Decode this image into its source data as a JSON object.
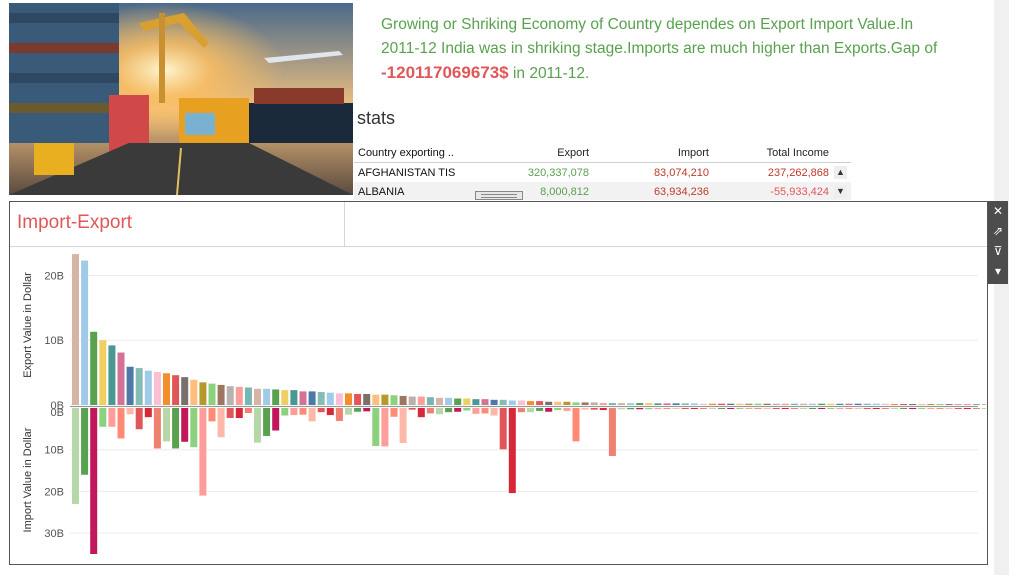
{
  "story": {
    "text": "Growing or Shriking Economy of Country dependes on Export Import Value.In 2011-12 India was in shriking stage.Imports are much higher than Exports.Gap of ",
    "gap_value": "-120117069673$",
    "suffix": " in 2011-12."
  },
  "stats": {
    "title": "stats",
    "headers": [
      "Country exporting ..",
      "Export",
      "Import",
      "Total Income"
    ],
    "rows": [
      {
        "country": "AFGHANISTAN TIS",
        "export": "320,337,078",
        "import": "83,074,210",
        "total": "237,262,868"
      },
      {
        "country": "ALBANIA",
        "export": "8,000,812",
        "import": "63,934,236",
        "total": "-55,933,424"
      }
    ],
    "scroll_up": "▲",
    "scroll_down": "▼"
  },
  "panel": {
    "title": "Import-Export",
    "export_axis_label": "Export Value in Dollar",
    "import_axis_label": "Import Value in Dollar",
    "tools": {
      "close": "✕",
      "popout": "⇗",
      "filter": "⊽",
      "menu": "▾"
    }
  },
  "chart_data": [
    {
      "type": "bar",
      "ylabel": "Export Value in Dollar",
      "ylim": [
        0,
        23000000000
      ],
      "ticks": [
        {
          "value": 0,
          "label": "0B"
        },
        {
          "value": 10000000000,
          "label": "10B"
        },
        {
          "value": 20000000000,
          "label": "20B"
        }
      ],
      "values": [
        23300000000,
        22300000000,
        11300000000,
        10000000000,
        9200000000,
        8100000000,
        5900000000,
        5700000000,
        5300000000,
        5100000000,
        4900000000,
        4600000000,
        4300000000,
        3900000000,
        3500000000,
        3300000000,
        3100000000,
        2900000000,
        2800000000,
        2700000000,
        2500000000,
        2500000000,
        2400000000,
        2300000000,
        2300000000,
        2100000000,
        2100000000,
        2000000000,
        1900000000,
        1800000000,
        1800000000,
        1700000000,
        1700000000,
        1600000000,
        1600000000,
        1500000000,
        1400000000,
        1300000000,
        1300000000,
        1200000000,
        1100000000,
        1100000000,
        1000000000,
        1000000000,
        900000000,
        900000000,
        800000000,
        800000000,
        700000000,
        700000000,
        600000000,
        600000000,
        500000000,
        500000000,
        500000000,
        400000000,
        400000000,
        400000000,
        300000000,
        300000000,
        300000000,
        300000000,
        300000000,
        300000000,
        250000000,
        250000000,
        250000000,
        250000000,
        250000000,
        200000000,
        200000000,
        200000000,
        200000000,
        200000000,
        200000000,
        200000000,
        200000000,
        200000000,
        200000000,
        200000000,
        200000000,
        200000000,
        200000000,
        200000000,
        200000000,
        200000000,
        200000000,
        200000000,
        200000000,
        200000000,
        150000000,
        150000000,
        150000000,
        150000000,
        150000000,
        150000000,
        150000000,
        150000000,
        150000000,
        150000000,
        150000000,
        150000000,
        150000000,
        150000000,
        150000000,
        150000000,
        150000000,
        150000000,
        150000000,
        150000000,
        150000000,
        150000000,
        100000000,
        100000000,
        100000000,
        100000000,
        100000000
      ]
    },
    {
      "type": "bar",
      "ylabel": "Import Value in Dollar",
      "ylim": [
        0,
        35000000000
      ],
      "ticks": [
        {
          "value": 0,
          "label": "0B"
        },
        {
          "value": 10000000000,
          "label": "10B"
        },
        {
          "value": 20000000000,
          "label": "20B"
        },
        {
          "value": 30000000000,
          "label": "30B"
        }
      ],
      "values": [
        23000000000,
        16000000000,
        35000000000,
        4500000000,
        4500000000,
        7300000000,
        1500000000,
        5100000000,
        2200000000,
        9700000000,
        8000000000,
        9700000000,
        8100000000,
        9400000000,
        21000000000,
        3200000000,
        7000000000,
        2400000000,
        2400000000,
        1200000000,
        8300000000,
        6700000000,
        5400000000,
        1800000000,
        1700000000,
        1600000000,
        3200000000,
        1000000000,
        1700000000,
        3100000000,
        1600000000,
        900000000,
        800000000,
        9100000000,
        9200000000,
        2100000000,
        8400000000,
        400000000,
        2200000000,
        1300000000,
        1500000000,
        1000000000,
        900000000,
        600000000,
        1400000000,
        1300000000,
        1800000000,
        9900000000,
        20400000000,
        1000000000,
        1000000000,
        700000000,
        900000000,
        500000000,
        700000000,
        8000000000,
        400000000,
        400000000,
        500000000,
        11500000000,
        300000000,
        300000000,
        300000000,
        300000000,
        200000000,
        200000000,
        200000000,
        200000000,
        200000000,
        200000000,
        200000000,
        200000000,
        200000000,
        200000000,
        200000000,
        200000000,
        200000000,
        200000000,
        200000000,
        150000000,
        150000000,
        150000000,
        150000000,
        150000000,
        150000000,
        150000000,
        150000000,
        150000000,
        150000000,
        150000000,
        150000000,
        150000000,
        150000000,
        150000000,
        150000000,
        150000000,
        150000000,
        150000000,
        150000000,
        150000000,
        150000000,
        150000000,
        150000000,
        150000000,
        150000000,
        150000000,
        150000000,
        150000000,
        150000000,
        150000000,
        150000000,
        100000000,
        100000000,
        100000000,
        100000000,
        100000000,
        100000000
      ]
    }
  ],
  "colors": {
    "palette": [
      "#d7b5a6",
      "#a0cbe8",
      "#59a14f",
      "#f1ce63",
      "#499894",
      "#d37295",
      "#4e79a7",
      "#86bcb6",
      "#a0cbe8",
      "#fabfd2",
      "#f28e2b",
      "#e15759",
      "#79706e",
      "#ffbe7d",
      "#b6992d",
      "#8cd17d",
      "#9d7660",
      "#bab0ac",
      "#ff9d9a",
      "#76b7b2"
    ],
    "import_palette": [
      "#b6d7a8",
      "#59a14f",
      "#c2185b",
      "#8cd17d",
      "#ff9d9a",
      "#ff8a75",
      "#fdb8a8",
      "#e15759",
      "#d62838",
      "#f08070"
    ]
  }
}
